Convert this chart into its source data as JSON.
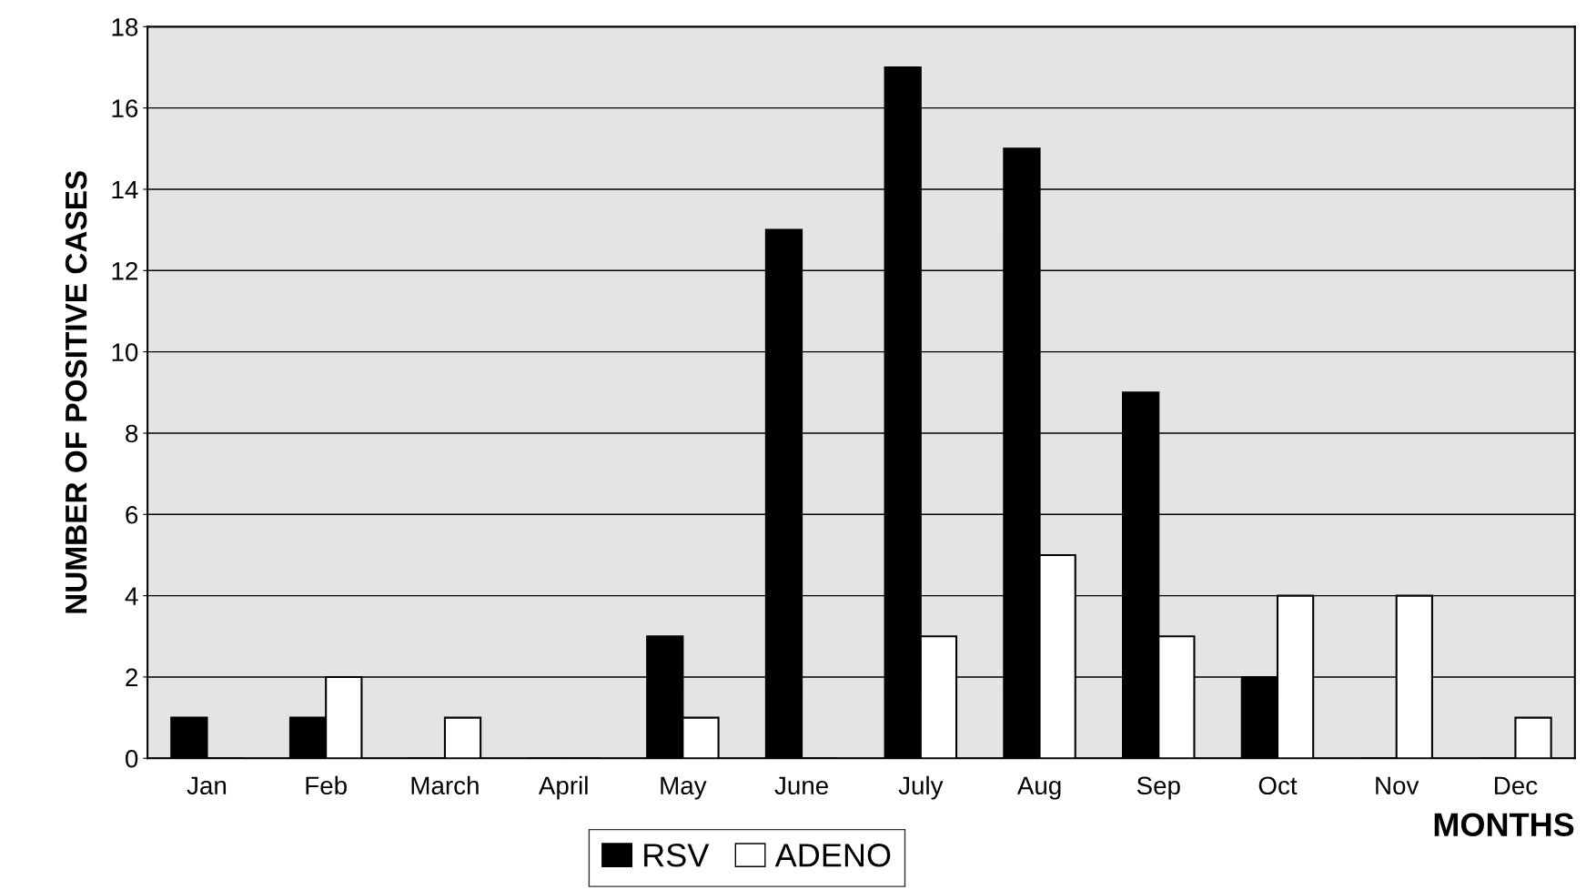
{
  "chart_data": {
    "type": "bar",
    "xlabel": "MONTHS",
    "ylabel": "NUMBER OF POSITIVE CASES",
    "categories": [
      "Jan",
      "Feb",
      "March",
      "April",
      "May",
      "June",
      "July",
      "Aug",
      "Sep",
      "Oct",
      "Nov",
      "Dec"
    ],
    "series": [
      {
        "name": "RSV",
        "color": "#000000",
        "values": [
          1,
          1,
          0,
          0,
          3,
          13,
          17,
          15,
          9,
          2,
          0,
          0
        ]
      },
      {
        "name": "ADENO",
        "color": "#ffffff",
        "values": [
          0,
          2,
          1,
          0,
          1,
          0,
          3,
          5,
          3,
          4,
          4,
          1
        ]
      }
    ],
    "ylim": [
      0,
      18
    ],
    "yticks": [
      0,
      2,
      4,
      6,
      8,
      10,
      12,
      14,
      16,
      18
    ],
    "grid": "y",
    "legend": "bottom"
  }
}
